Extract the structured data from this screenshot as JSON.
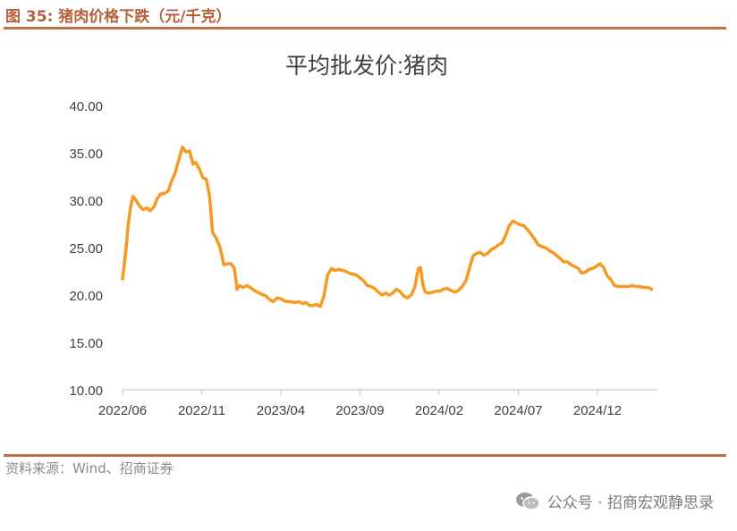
{
  "figure": {
    "label": "图 35:",
    "title": "猪肉价格下跌（元/千克）"
  },
  "source_note": "资料来源：Wind、招商证券",
  "footer": {
    "icon": "wechat-icon",
    "text": "公众号 · 招商宏观静思录"
  },
  "colors": {
    "accent": "#c07048",
    "series": "#f59a23"
  },
  "chart_data": {
    "type": "line",
    "title": "平均批发价:猪肉",
    "xlabel": "",
    "ylabel": "",
    "ylim": [
      10,
      40
    ],
    "yticks": [
      "10.00",
      "15.00",
      "20.00",
      "25.00",
      "30.00",
      "35.00",
      "40.00"
    ],
    "xticks": [
      "2022/06",
      "2022/11",
      "2023/04",
      "2023/09",
      "2024/02",
      "2024/07",
      "2024/12"
    ],
    "grid": false,
    "legend": "none",
    "series": [
      {
        "values": [
          [
            "2022-06-01",
            21.7
          ],
          [
            "2022-06-04",
            23.0
          ],
          [
            "2022-06-08",
            25.0
          ],
          [
            "2022-06-12",
            27.5
          ],
          [
            "2022-06-16",
            29.1
          ],
          [
            "2022-06-21",
            30.4
          ],
          [
            "2022-06-27",
            30.0
          ],
          [
            "2022-07-03",
            29.4
          ],
          [
            "2022-07-10",
            29.0
          ],
          [
            "2022-07-17",
            29.2
          ],
          [
            "2022-07-24",
            28.9
          ],
          [
            "2022-07-31",
            29.3
          ],
          [
            "2022-08-07",
            30.2
          ],
          [
            "2022-08-14",
            30.7
          ],
          [
            "2022-08-21",
            30.7
          ],
          [
            "2022-08-28",
            31.0
          ],
          [
            "2022-09-04",
            32.0
          ],
          [
            "2022-09-11",
            32.9
          ],
          [
            "2022-09-18",
            34.3
          ],
          [
            "2022-09-25",
            35.6
          ],
          [
            "2022-10-01",
            35.1
          ],
          [
            "2022-10-08",
            35.2
          ],
          [
            "2022-10-15",
            33.8
          ],
          [
            "2022-10-20",
            34.0
          ],
          [
            "2022-10-27",
            33.3
          ],
          [
            "2022-11-03",
            32.4
          ],
          [
            "2022-11-10",
            32.2
          ],
          [
            "2022-11-16",
            30.5
          ],
          [
            "2022-11-22",
            26.6
          ],
          [
            "2022-11-29",
            26.0
          ],
          [
            "2022-12-06",
            25.0
          ],
          [
            "2022-12-13",
            23.2
          ],
          [
            "2022-12-20",
            23.3
          ],
          [
            "2022-12-27",
            23.3
          ],
          [
            "2023-01-03",
            22.8
          ],
          [
            "2023-01-08",
            20.6
          ],
          [
            "2023-01-13",
            21.0
          ],
          [
            "2023-01-20",
            20.8
          ],
          [
            "2023-01-27",
            21.0
          ],
          [
            "2023-02-03",
            20.8
          ],
          [
            "2023-02-10",
            20.5
          ],
          [
            "2023-02-17",
            20.3
          ],
          [
            "2023-02-24",
            20.1
          ],
          [
            "2023-03-03",
            19.9
          ],
          [
            "2023-03-10",
            19.5
          ],
          [
            "2023-03-17",
            19.3
          ],
          [
            "2023-03-24",
            19.7
          ],
          [
            "2023-03-31",
            19.6
          ],
          [
            "2023-04-07",
            19.4
          ],
          [
            "2023-04-14",
            19.3
          ],
          [
            "2023-04-21",
            19.3
          ],
          [
            "2023-04-28",
            19.2
          ],
          [
            "2023-05-05",
            19.3
          ],
          [
            "2023-05-12",
            19.1
          ],
          [
            "2023-05-19",
            19.2
          ],
          [
            "2023-05-26",
            18.9
          ],
          [
            "2023-06-02",
            18.9
          ],
          [
            "2023-06-09",
            19.0
          ],
          [
            "2023-06-16",
            18.8
          ],
          [
            "2023-06-23",
            19.9
          ],
          [
            "2023-06-30",
            22.1
          ],
          [
            "2023-07-07",
            22.8
          ],
          [
            "2023-07-14",
            22.6
          ],
          [
            "2023-07-21",
            22.7
          ],
          [
            "2023-07-28",
            22.6
          ],
          [
            "2023-08-04",
            22.5
          ],
          [
            "2023-08-11",
            22.3
          ],
          [
            "2023-08-18",
            22.2
          ],
          [
            "2023-08-25",
            22.1
          ],
          [
            "2023-09-01",
            21.8
          ],
          [
            "2023-09-08",
            21.5
          ],
          [
            "2023-09-15",
            21.0
          ],
          [
            "2023-09-22",
            20.9
          ],
          [
            "2023-09-29",
            20.7
          ],
          [
            "2023-10-06",
            20.3
          ],
          [
            "2023-10-13",
            20.0
          ],
          [
            "2023-10-20",
            20.2
          ],
          [
            "2023-10-27",
            20.0
          ],
          [
            "2023-11-03",
            20.2
          ],
          [
            "2023-11-10",
            20.6
          ],
          [
            "2023-11-17",
            20.4
          ],
          [
            "2023-11-24",
            19.9
          ],
          [
            "2023-12-01",
            19.7
          ],
          [
            "2023-12-08",
            20.0
          ],
          [
            "2023-12-15",
            20.8
          ],
          [
            "2023-12-22",
            22.8
          ],
          [
            "2023-12-26",
            22.9
          ],
          [
            "2023-12-31",
            21.0
          ],
          [
            "2024-01-05",
            20.3
          ],
          [
            "2024-01-12",
            20.2
          ],
          [
            "2024-01-19",
            20.3
          ],
          [
            "2024-01-26",
            20.4
          ],
          [
            "2024-02-02",
            20.4
          ],
          [
            "2024-02-09",
            20.6
          ],
          [
            "2024-02-16",
            20.7
          ],
          [
            "2024-02-23",
            20.5
          ],
          [
            "2024-03-01",
            20.3
          ],
          [
            "2024-03-08",
            20.5
          ],
          [
            "2024-03-15",
            20.9
          ],
          [
            "2024-03-22",
            21.5
          ],
          [
            "2024-03-29",
            22.8
          ],
          [
            "2024-04-05",
            24.1
          ],
          [
            "2024-04-12",
            24.4
          ],
          [
            "2024-04-19",
            24.5
          ],
          [
            "2024-04-26",
            24.2
          ],
          [
            "2024-05-03",
            24.4
          ],
          [
            "2024-05-10",
            24.8
          ],
          [
            "2024-05-17",
            25.0
          ],
          [
            "2024-05-24",
            25.3
          ],
          [
            "2024-05-31",
            25.5
          ],
          [
            "2024-06-07",
            26.3
          ],
          [
            "2024-06-14",
            27.3
          ],
          [
            "2024-06-21",
            27.8
          ],
          [
            "2024-06-28",
            27.6
          ],
          [
            "2024-07-05",
            27.4
          ],
          [
            "2024-07-12",
            27.3
          ],
          [
            "2024-07-19",
            26.9
          ],
          [
            "2024-07-26",
            26.4
          ],
          [
            "2024-08-02",
            25.9
          ],
          [
            "2024-08-09",
            25.3
          ],
          [
            "2024-08-16",
            25.1
          ],
          [
            "2024-08-23",
            25.0
          ],
          [
            "2024-08-30",
            24.7
          ],
          [
            "2024-09-06",
            24.5
          ],
          [
            "2024-09-13",
            24.2
          ],
          [
            "2024-09-20",
            23.9
          ],
          [
            "2024-09-27",
            23.5
          ],
          [
            "2024-10-04",
            23.5
          ],
          [
            "2024-10-11",
            23.2
          ],
          [
            "2024-10-18",
            23.0
          ],
          [
            "2024-10-25",
            22.8
          ],
          [
            "2024-11-01",
            22.3
          ],
          [
            "2024-11-08",
            22.4
          ],
          [
            "2024-11-15",
            22.7
          ],
          [
            "2024-11-22",
            22.8
          ],
          [
            "2024-11-29",
            23.0
          ],
          [
            "2024-12-06",
            23.3
          ],
          [
            "2024-12-13",
            22.9
          ],
          [
            "2024-12-20",
            22.0
          ],
          [
            "2024-12-27",
            21.6
          ],
          [
            "2025-01-03",
            21.0
          ],
          [
            "2025-01-10",
            20.9
          ],
          [
            "2025-01-17",
            20.9
          ],
          [
            "2025-01-24",
            20.9
          ],
          [
            "2025-01-31",
            20.9
          ],
          [
            "2025-02-07",
            21.0
          ],
          [
            "2025-02-14",
            20.9
          ],
          [
            "2025-02-21",
            20.9
          ],
          [
            "2025-02-28",
            20.8
          ],
          [
            "2025-03-07",
            20.8
          ],
          [
            "2025-03-14",
            20.6
          ]
        ]
      }
    ]
  }
}
